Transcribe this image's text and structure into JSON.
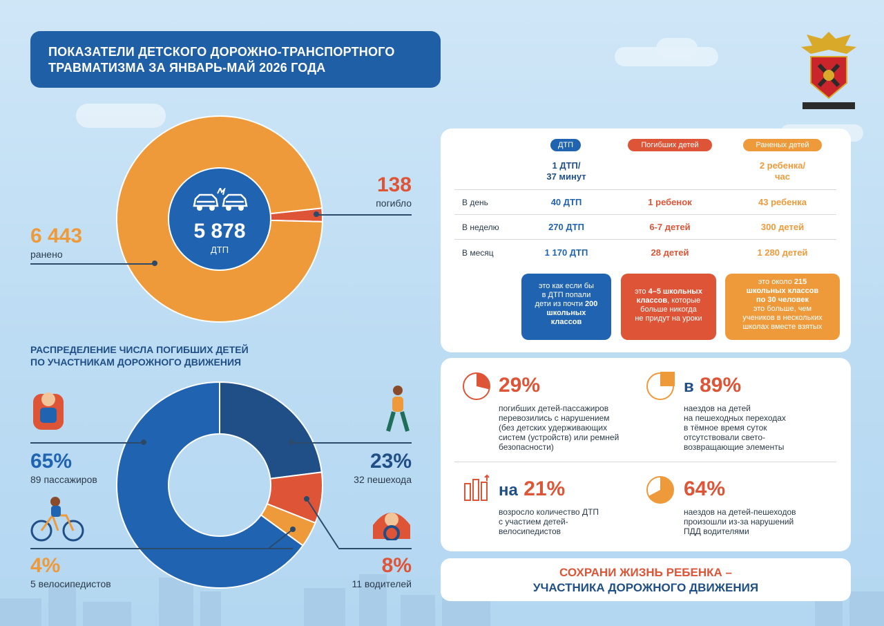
{
  "title": {
    "line1": "ПОКАЗАТЕЛИ ДЕТСКОГО ДОРОЖНО-ТРАНСПОРТНОГО",
    "line2": "ТРАВМАТИЗМА ЗА ЯНВАРЬ-МАЙ 2026 ГОДА"
  },
  "colors": {
    "blue": "#1f63b1",
    "dark_blue": "#1f4f86",
    "orange": "#ee9a3a",
    "red": "#dd5436"
  },
  "chart_data": [
    {
      "type": "pie",
      "center_value": "5 878",
      "center_label": "ДТП",
      "slices": [
        {
          "label": "погибло",
          "display": "138",
          "value": 138,
          "color": "#dd5436"
        },
        {
          "label": "ранено",
          "display": "6 443",
          "value": 6443,
          "color": "#ee9a3a"
        }
      ]
    },
    {
      "type": "pie",
      "title": "РАСПРЕДЕЛЕНИЕ ЧИСЛА ПОГИБШИХ ДЕТЕЙ ПО УЧАСТНИКАМ ДОРОЖНОГО ДВИЖЕНИЯ",
      "title_line1": "РАСПРЕДЕЛЕНИЕ ЧИСЛА ПОГИБШИХ ДЕТЕЙ",
      "title_line2": "ПО УЧАСТНИКАМ ДОРОЖНОГО ДВИЖЕНИЯ",
      "slices": [
        {
          "label": "32 пешехода",
          "percent_label": "23%",
          "value": 23,
          "count": 32,
          "color": "#1f4f86"
        },
        {
          "label": "11 водителей",
          "percent_label": "8%",
          "value": 8,
          "count": 11,
          "color": "#dd5436"
        },
        {
          "label": "5 велосипедистов",
          "percent_label": "4%",
          "value": 4,
          "count": 5,
          "color": "#ee9a3a"
        },
        {
          "label": "89 пассажиров",
          "percent_label": "65%",
          "value": 65,
          "count": 89,
          "color": "#1f63b1"
        }
      ]
    }
  ],
  "table": {
    "headers": [
      "ДТП",
      "Погибших детей",
      "Раненых детей"
    ],
    "rate_row": [
      "1 ДТП/\n37 минут",
      "",
      "2 ребенка/\nчас"
    ],
    "rate_dtp_line1": "1 ДТП/",
    "rate_dtp_line2": "37 минут",
    "rate_inj_line1": "2 ребенка/",
    "rate_inj_line2": "час",
    "rows": [
      {
        "label": "В день",
        "values": [
          "40 ДТП",
          "1 ребенок",
          "43 ребенка"
        ]
      },
      {
        "label": "В неделю",
        "values": [
          "270 ДТП",
          "6-7 детей",
          "300 детей"
        ]
      },
      {
        "label": "В месяц",
        "values": [
          "1 170 ДТП",
          "28 детей",
          "1 280 детей"
        ]
      }
    ],
    "notes": {
      "dtp": {
        "l1": "это как если бы",
        "l2": "в ДТП попали",
        "l3": "дети из почти ",
        "l3b": "200",
        "l4b": "школьных",
        "l5b": "классов"
      },
      "killed": {
        "l1": "это ",
        "l1b": "4–5 школьных",
        "l2b": "классов",
        "l2": ", которые",
        "l3": "больше никогда",
        "l4": "не придут на уроки"
      },
      "injured": {
        "l1": "это около ",
        "l1b": "215",
        "l2b": "школьных классов",
        "l3b": "по 30 человек",
        "l4": "это больше, чем",
        "l5": "учеников в нескольких",
        "l6": "школах вместе взятых"
      }
    }
  },
  "facts": [
    {
      "value": "29%",
      "prefix": "",
      "lines": [
        "погибших детей-пассажиров",
        "перевозились с нарушением",
        "(без детских удерживающих",
        "систем (устройств) или ремней",
        "безопасности)"
      ]
    },
    {
      "value": "89%",
      "prefix": "в",
      "lines": [
        "наездов на детей",
        "на пешеходных переходах",
        "в тёмное время суток",
        "отсутствовали свето-",
        "возвращающие элементы"
      ]
    },
    {
      "value": "21%",
      "prefix": "на",
      "lines": [
        "возросло количество ДТП",
        "с участием детей-",
        "велосипедистов"
      ]
    },
    {
      "value": "64%",
      "prefix": "",
      "lines": [
        "наездов на детей-пешеходов",
        "произошли из-за нарушений",
        "ПДД водителями"
      ]
    }
  ],
  "slogan": {
    "line1": "СОХРАНИ ЖИЗНЬ РЕБЕНКА –",
    "line2": "УЧАСТНИКА ДОРОЖНОГО ДВИЖЕНИЯ"
  },
  "emblem": {
    "icon": "police-emblem-icon"
  }
}
